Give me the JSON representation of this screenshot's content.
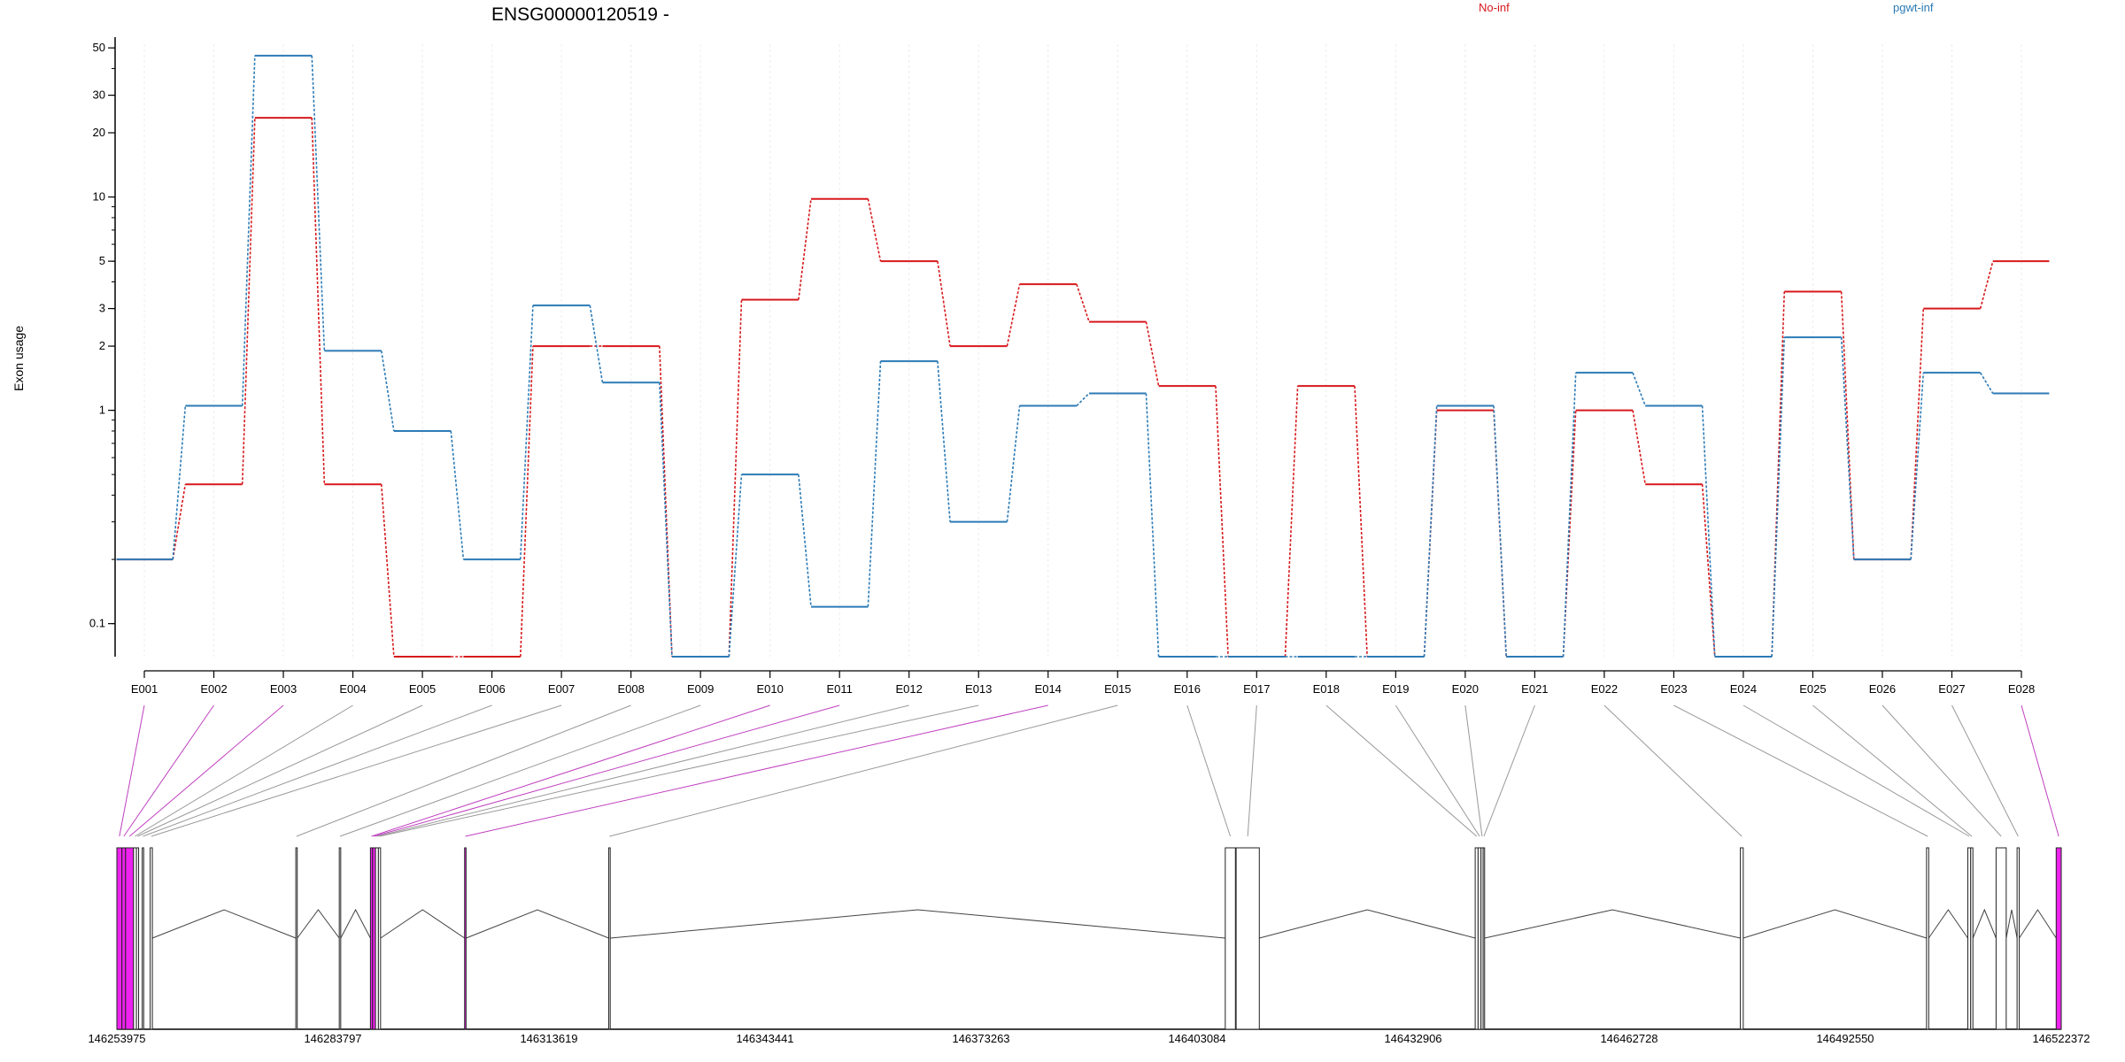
{
  "chart_data": {
    "type": "line",
    "title": "ENSG00000120519 -",
    "ylabel": "Exon usage",
    "y_scale": "log",
    "ylim": [
      0.07,
      52
    ],
    "yticks": [
      0.1,
      1,
      2,
      3,
      5,
      10,
      20,
      30,
      50
    ],
    "grid": "vertical-light",
    "legend_placement": "top-right",
    "categories": [
      "E001",
      "E002",
      "E003",
      "E004",
      "E005",
      "E006",
      "E007",
      "E008",
      "E009",
      "E010",
      "E011",
      "E012",
      "E013",
      "E014",
      "E015",
      "E016",
      "E017",
      "E018",
      "E019",
      "E020",
      "E021",
      "E022",
      "E023",
      "E024",
      "E025",
      "E026",
      "E027",
      "E028"
    ],
    "series": [
      {
        "name": "No-inf",
        "color": "#d7191c",
        "values": [
          0.2,
          0.45,
          23.5,
          0.45,
          0.07,
          0.07,
          2.0,
          2.0,
          0.07,
          3.3,
          9.8,
          5.0,
          2.0,
          3.9,
          2.6,
          1.3,
          0.07,
          1.3,
          0.07,
          1.0,
          0.07,
          1.0,
          0.45,
          0.07,
          3.6,
          0.2,
          3.0,
          5.0
        ]
      },
      {
        "name": "pgwt-inf",
        "color": "#2c7bb6",
        "values": [
          0.2,
          1.05,
          46.0,
          1.9,
          0.8,
          0.2,
          3.1,
          1.35,
          0.07,
          0.5,
          0.12,
          1.7,
          0.3,
          1.05,
          1.2,
          0.07,
          0.07,
          0.07,
          0.07,
          1.05,
          0.07,
          1.5,
          1.05,
          0.07,
          2.2,
          0.2,
          1.5,
          1.2
        ]
      }
    ],
    "gene_model": {
      "coord_range": [
        146253975,
        146522372
      ],
      "coordinate_ticks": [
        "146253975",
        "146283797",
        "146313619",
        "146343441",
        "146373263",
        "146403084",
        "146432906",
        "146462728",
        "146492550",
        "146522372"
      ],
      "exons": [
        {
          "id": "E001",
          "start": 146253975,
          "end": 146254675,
          "highlight": true
        },
        {
          "id": "E002",
          "start": 146254675,
          "end": 146255175,
          "highlight": true
        },
        {
          "id": "E003",
          "start": 146255175,
          "end": 146256275,
          "highlight": true
        },
        {
          "id": "E004",
          "start": 146256275,
          "end": 146256675,
          "highlight": false
        },
        {
          "id": "E005",
          "start": 146256675,
          "end": 146256975,
          "highlight": false
        },
        {
          "id": "E006",
          "start": 146257475,
          "end": 146257675,
          "highlight": false
        },
        {
          "id": "E007",
          "start": 146258575,
          "end": 146258875,
          "highlight": false
        },
        {
          "id": "E008",
          "start": 146278675,
          "end": 146278875,
          "highlight": false
        },
        {
          "id": "E009",
          "start": 146284675,
          "end": 146284875,
          "highlight": false
        },
        {
          "id": "E010",
          "start": 146288975,
          "end": 146289275,
          "highlight": true
        },
        {
          "id": "E011",
          "start": 146289275,
          "end": 146289675,
          "highlight": true
        },
        {
          "id": "E012",
          "start": 146289675,
          "end": 146290075,
          "highlight": false
        },
        {
          "id": "E013",
          "start": 146290075,
          "end": 146290375,
          "highlight": false
        },
        {
          "id": "E014",
          "start": 146301975,
          "end": 146302175,
          "highlight": true
        },
        {
          "id": "E015",
          "start": 146321875,
          "end": 146322075,
          "highlight": false
        },
        {
          "id": "E016",
          "start": 146406975,
          "end": 146408375,
          "highlight": false
        },
        {
          "id": "E017",
          "start": 146408475,
          "end": 146411675,
          "highlight": false
        },
        {
          "id": "E018",
          "start": 146441475,
          "end": 146441875,
          "highlight": false
        },
        {
          "id": "E019",
          "start": 146441875,
          "end": 146442275,
          "highlight": false
        },
        {
          "id": "E020",
          "start": 146442275,
          "end": 146442575,
          "highlight": false
        },
        {
          "id": "E021",
          "start": 146442575,
          "end": 146442775,
          "highlight": false
        },
        {
          "id": "E022",
          "start": 146478075,
          "end": 146478475,
          "highlight": false
        },
        {
          "id": "E023",
          "start": 146503775,
          "end": 146504075,
          "highlight": false
        },
        {
          "id": "E024",
          "start": 146509475,
          "end": 146509875,
          "highlight": false
        },
        {
          "id": "E025",
          "start": 146509875,
          "end": 146510175,
          "highlight": false
        },
        {
          "id": "E026",
          "start": 146513375,
          "end": 146514775,
          "highlight": false
        },
        {
          "id": "E027",
          "start": 146516275,
          "end": 146516575,
          "highlight": false
        },
        {
          "id": "E028",
          "start": 146521672,
          "end": 146522372,
          "highlight": true
        }
      ],
      "introns": [
        [
          146258875,
          146278675
        ],
        [
          146278875,
          146284675
        ],
        [
          146284875,
          146288975
        ],
        [
          146290375,
          146301975
        ],
        [
          146302175,
          146321875
        ],
        [
          146322075,
          146406975
        ],
        [
          146411675,
          146441475
        ],
        [
          146442775,
          146478075
        ],
        [
          146478475,
          146503775
        ],
        [
          146504075,
          146509475
        ],
        [
          146510175,
          146513375
        ],
        [
          146514775,
          146516275
        ],
        [
          146516575,
          146521672
        ]
      ]
    }
  }
}
